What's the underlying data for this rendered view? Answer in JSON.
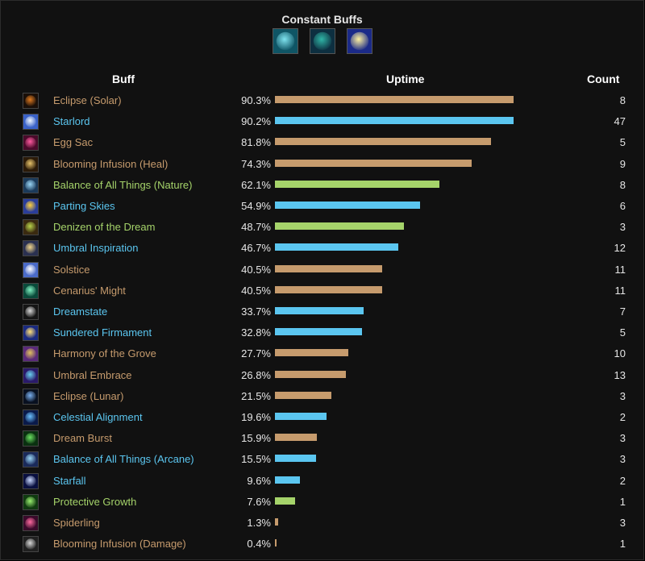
{
  "title": "Constant Buffs",
  "constant_icons": [
    {
      "icon": "leaf-icon",
      "c1": "#7fe3ef",
      "c2": "#0f5565"
    },
    {
      "icon": "treant-icon",
      "c1": "#2fb5a6",
      "c2": "#0d2f40"
    },
    {
      "icon": "solar-lunar-icon",
      "c1": "#fff2a0",
      "c2": "#1b2a88"
    }
  ],
  "headers": {
    "buff": "Buff",
    "uptime": "Uptime",
    "count": "Count"
  },
  "type_colors": {
    "general": "#c69b6d",
    "blue": "#5bc6f0",
    "green": "#a5d36a"
  },
  "max_bar_percent": 90.3,
  "rows": [
    {
      "name": "Eclipse (Solar)",
      "uptime": "90.3%",
      "percent": 90.3,
      "count": "8",
      "type": "general",
      "icon": "eclipse-solar-icon",
      "c1": "#e07a1f",
      "c2": "#1a0f08"
    },
    {
      "name": "Starlord",
      "uptime": "90.2%",
      "percent": 90.2,
      "count": "47",
      "type": "blue",
      "icon": "starlord-icon",
      "c1": "#eef6ff",
      "c2": "#3a62c8"
    },
    {
      "name": "Egg Sac",
      "uptime": "81.8%",
      "percent": 81.8,
      "count": "5",
      "type": "general",
      "icon": "egg-sac-icon",
      "c1": "#ff5aa0",
      "c2": "#4a0a2a"
    },
    {
      "name": "Blooming Infusion (Heal)",
      "uptime": "74.3%",
      "percent": 74.3,
      "count": "9",
      "type": "general",
      "icon": "blooming-infusion-icon",
      "c1": "#e8c36a",
      "c2": "#2b1a08"
    },
    {
      "name": "Balance of All Things (Nature)",
      "uptime": "62.1%",
      "percent": 62.1,
      "count": "8",
      "type": "green",
      "icon": "balance-nature-icon",
      "c1": "#9ad6f6",
      "c2": "#1b3a5a"
    },
    {
      "name": "Parting Skies",
      "uptime": "54.9%",
      "percent": 54.9,
      "count": "6",
      "type": "blue",
      "icon": "parting-skies-icon",
      "c1": "#ffd23f",
      "c2": "#2a3d9a"
    },
    {
      "name": "Denizen of the Dream",
      "uptime": "48.7%",
      "percent": 48.7,
      "count": "3",
      "type": "green",
      "icon": "denizen-dream-icon",
      "c1": "#b8d34a",
      "c2": "#3a2a10"
    },
    {
      "name": "Umbral Inspiration",
      "uptime": "46.7%",
      "percent": 46.7,
      "count": "12",
      "type": "blue",
      "icon": "umbral-inspiration-icon",
      "c1": "#f0d58a",
      "c2": "#2a3050"
    },
    {
      "name": "Solstice",
      "uptime": "40.5%",
      "percent": 40.5,
      "count": "11",
      "type": "general",
      "icon": "solstice-icon",
      "c1": "#ffffff",
      "c2": "#4a6ac8"
    },
    {
      "name": "Cenarius' Might",
      "uptime": "40.5%",
      "percent": 40.5,
      "count": "11",
      "type": "general",
      "icon": "cenarius-might-icon",
      "c1": "#7ef0c0",
      "c2": "#0a4a3a"
    },
    {
      "name": "Dreamstate",
      "uptime": "33.7%",
      "percent": 33.7,
      "count": "7",
      "type": "blue",
      "icon": "dreamstate-icon",
      "c1": "#d8d8d8",
      "c2": "#151515"
    },
    {
      "name": "Sundered Firmament",
      "uptime": "32.8%",
      "percent": 32.8,
      "count": "5",
      "type": "blue",
      "icon": "sundered-firmament-icon",
      "c1": "#ffe07a",
      "c2": "#1a2a80"
    },
    {
      "name": "Harmony of the Grove",
      "uptime": "27.7%",
      "percent": 27.7,
      "count": "10",
      "type": "general",
      "icon": "harmony-grove-icon",
      "c1": "#e0c060",
      "c2": "#5a2a7a"
    },
    {
      "name": "Umbral Embrace",
      "uptime": "26.8%",
      "percent": 26.8,
      "count": "13",
      "type": "general",
      "icon": "umbral-embrace-icon",
      "c1": "#6ad0f0",
      "c2": "#2a1a6a"
    },
    {
      "name": "Eclipse (Lunar)",
      "uptime": "21.5%",
      "percent": 21.5,
      "count": "3",
      "type": "general",
      "icon": "eclipse-lunar-icon",
      "c1": "#7ab0f0",
      "c2": "#081020"
    },
    {
      "name": "Celestial Alignment",
      "uptime": "19.6%",
      "percent": 19.6,
      "count": "2",
      "type": "blue",
      "icon": "celestial-alignment-icon",
      "c1": "#6ac0ff",
      "c2": "#0a1a4a"
    },
    {
      "name": "Dream Burst",
      "uptime": "15.9%",
      "percent": 15.9,
      "count": "3",
      "type": "general",
      "icon": "dream-burst-icon",
      "c1": "#6ae060",
      "c2": "#0a3010"
    },
    {
      "name": "Balance of All Things (Arcane)",
      "uptime": "15.5%",
      "percent": 15.5,
      "count": "3",
      "type": "blue",
      "icon": "balance-arcane-icon",
      "c1": "#9ad6f6",
      "c2": "#1a2a5a"
    },
    {
      "name": "Starfall",
      "uptime": "9.6%",
      "percent": 9.6,
      "count": "2",
      "type": "blue",
      "icon": "starfall-icon",
      "c1": "#c8d8ff",
      "c2": "#0a1040"
    },
    {
      "name": "Protective Growth",
      "uptime": "7.6%",
      "percent": 7.6,
      "count": "1",
      "type": "green",
      "icon": "protective-growth-icon",
      "c1": "#9af070",
      "c2": "#103a10"
    },
    {
      "name": "Spiderling",
      "uptime": "1.3%",
      "percent": 1.3,
      "count": "3",
      "type": "general",
      "icon": "spiderling-icon",
      "c1": "#ff6aa0",
      "c2": "#3a0a2a"
    },
    {
      "name": "Blooming Infusion (Damage)",
      "uptime": "0.4%",
      "percent": 0.4,
      "count": "1",
      "type": "general",
      "icon": "blooming-infusion-damage-icon",
      "c1": "#d8d8d8",
      "c2": "#202020"
    }
  ]
}
